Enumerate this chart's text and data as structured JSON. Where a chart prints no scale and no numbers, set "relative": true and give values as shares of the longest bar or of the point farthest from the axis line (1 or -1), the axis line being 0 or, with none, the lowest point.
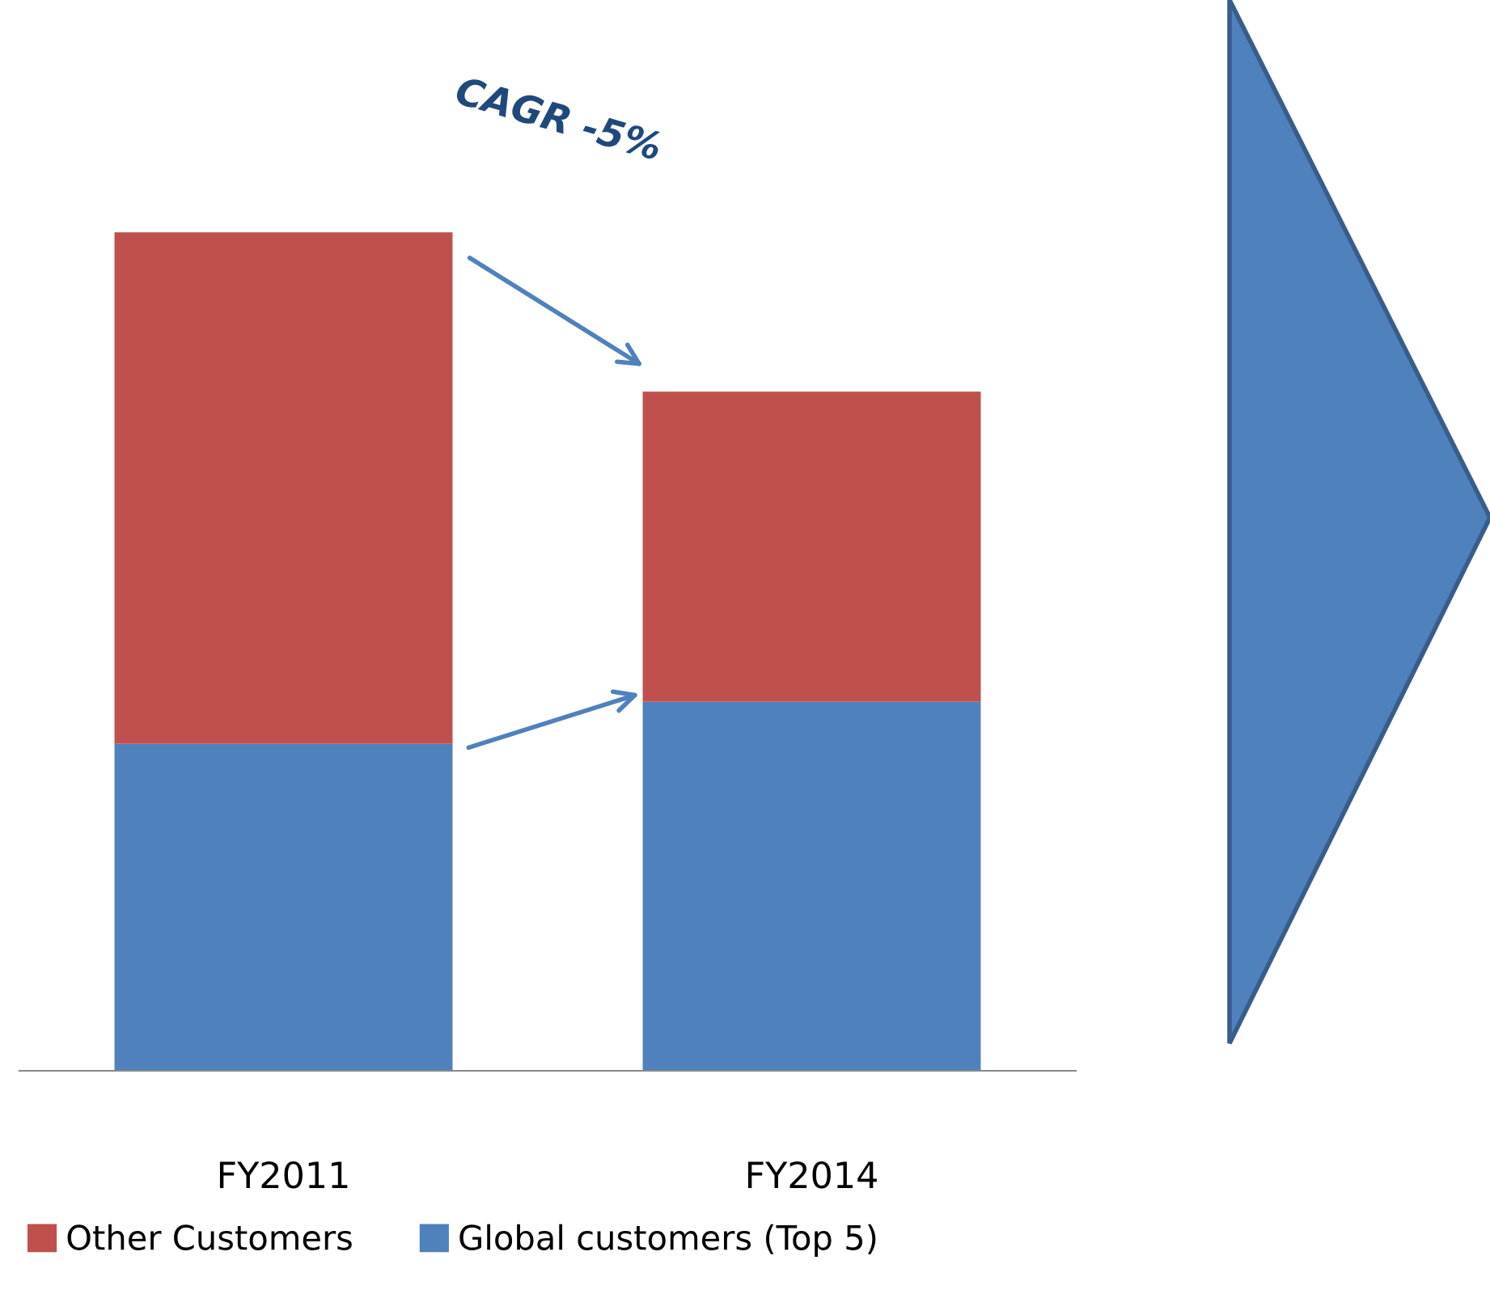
{
  "chart_data": {
    "type": "bar",
    "stacked": true,
    "relative": true,
    "categories": [
      "FY2011",
      "FY2014"
    ],
    "series": [
      {
        "name": "Global customers (Top 5)",
        "color": "#4f81bd",
        "values": [
          0.39,
          0.44
        ]
      },
      {
        "name": "Other Customers",
        "color": "#c0504d",
        "values": [
          0.61,
          0.37
        ]
      }
    ],
    "annotations": [
      "CAGR -5%"
    ],
    "legend": "bottom",
    "grid": false
  }
}
